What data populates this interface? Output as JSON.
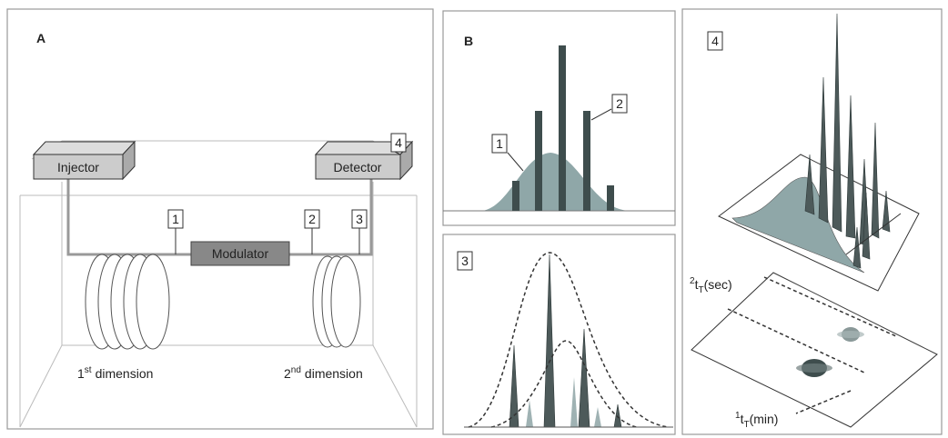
{
  "panel_a": {
    "label": "A",
    "injector": "Injector",
    "detector": "Detector",
    "modulator": "Modulator",
    "markers": [
      "1",
      "2",
      "3",
      "4"
    ],
    "dimension_1": {
      "number": "1",
      "superscript": "st",
      "text": "dimension"
    },
    "dimension_2": {
      "number": "2",
      "superscript": "nd",
      "text": "dimension"
    }
  },
  "panel_b": {
    "label": "B",
    "markers": [
      "1",
      "2"
    ]
  },
  "panel_3": {
    "label": "3"
  },
  "panel_4": {
    "label": "4",
    "axis_2": {
      "number": "2",
      "symbol": "t",
      "subscript": "T",
      "unit": "(sec)"
    },
    "axis_1": {
      "number": "1",
      "symbol": "t",
      "subscript": "T",
      "unit": "(min)"
    }
  }
}
